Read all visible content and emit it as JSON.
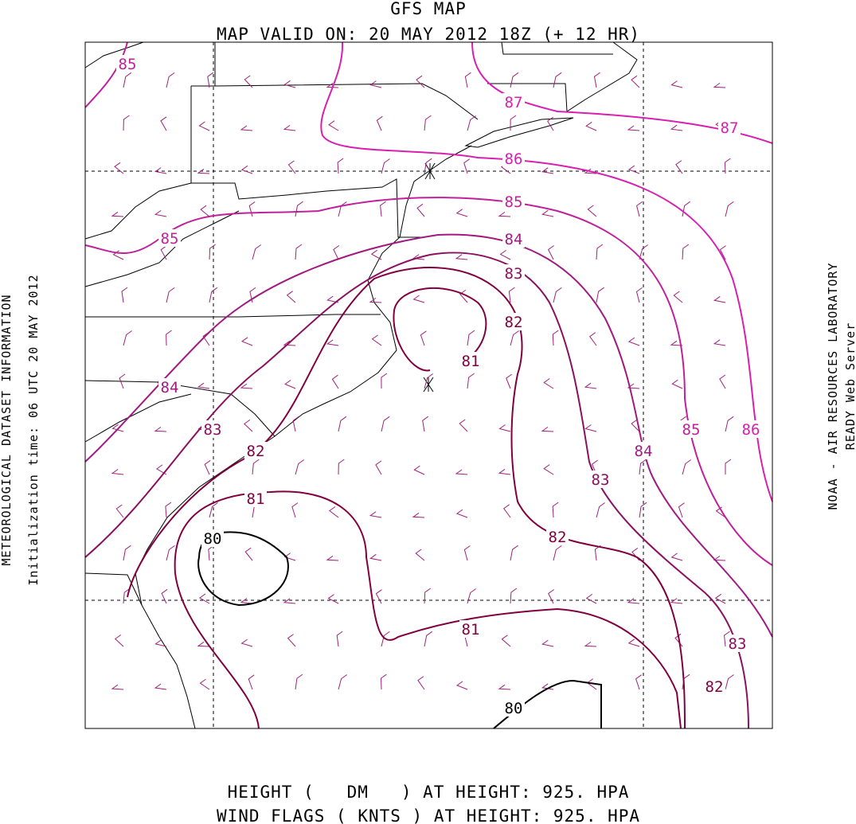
{
  "header": {
    "title": "GFS MAP",
    "subtitle": "MAP VALID ON: 20 MAY 2012 18Z (+ 12 HR)"
  },
  "side_left": {
    "line1": "METEOROLOGICAL DATASET INFORMATION",
    "line2": "Initialization time: 06 UTC 20 MAY 2012"
  },
  "side_right": {
    "line1": "NOAA - AIR RESOURCES LABORATORY",
    "line2": "READY Web Server"
  },
  "map": {
    "contour_labels": [
      "85",
      "87",
      "87",
      "86",
      "85",
      "85",
      "84",
      "83",
      "82",
      "81",
      "84",
      "83",
      "85",
      "86",
      "82",
      "84",
      "83",
      "81",
      "82",
      "80",
      "81",
      "83",
      "82",
      "80"
    ]
  },
  "footer": {
    "line1": "HEIGHT (   DM   ) AT HEIGHT: 925. HPA",
    "line2": "WIND FLAGS ( KNTS ) AT HEIGHT: 925. HPA"
  }
}
